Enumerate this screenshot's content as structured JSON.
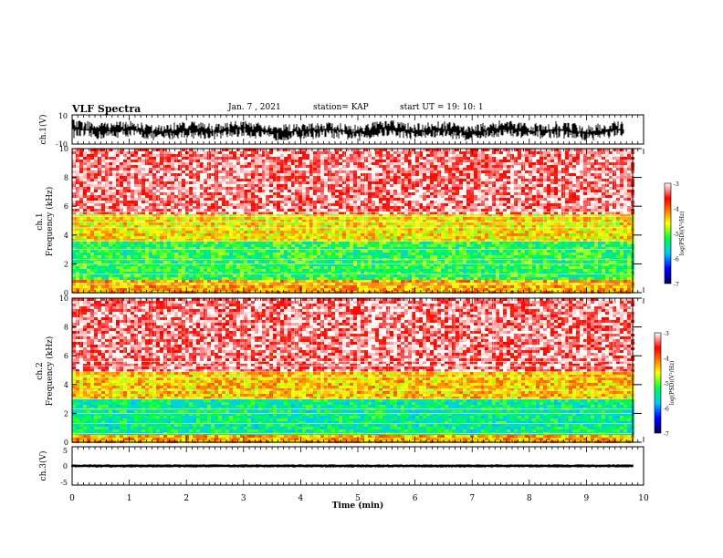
{
  "header": {
    "title": "VLF Spectra",
    "date": "Jan. 7 , 2021",
    "station": "station= KAP",
    "start": "start UT = 19: 10: 1"
  },
  "chart_data": [
    {
      "type": "line",
      "ylabel": "ch.1(V)",
      "ylim": [
        -10,
        10
      ],
      "yticklabels": [
        "10",
        "-10"
      ],
      "xlim": [
        0,
        10
      ],
      "description_level": "noisy waveform with slow oscillation",
      "envelope": {
        "x": [
          0,
          0.5,
          1,
          1.5,
          2,
          2.5,
          3,
          3.5,
          4,
          4.5,
          5,
          5.5,
          6,
          6.5,
          7,
          7.5,
          8,
          8.5,
          9,
          9.5,
          9.8
        ],
        "lower": [
          -6,
          -7,
          -5,
          -8,
          -6,
          -7,
          -5,
          -8,
          -7,
          -6,
          -8,
          -5,
          -7,
          -6,
          -8,
          -5,
          -7,
          -6,
          -8,
          -6,
          -7
        ],
        "upper": [
          7,
          5,
          6,
          3,
          6,
          4,
          7,
          3,
          5,
          6,
          3,
          7,
          4,
          6,
          3,
          7,
          4,
          6,
          3,
          6,
          5
        ]
      }
    },
    {
      "type": "heatmap",
      "ylabel": "ch.1",
      "ylabel2": "Frequency (kHz)",
      "ylim": [
        0,
        10
      ],
      "yticks": [
        0,
        2,
        4,
        6,
        8,
        10
      ],
      "xlim": [
        0,
        10
      ],
      "colorbar": {
        "label": "log(PSD)(V²/Hz)",
        "range": [
          -7,
          -3
        ],
        "ticks": [
          "-3",
          "-4",
          "-5",
          "-6",
          "-7"
        ]
      },
      "bands": [
        {
          "from": 0,
          "to": 0.8,
          "level": -4.3
        },
        {
          "from": 0.8,
          "to": 3.6,
          "level": -5.2
        },
        {
          "from": 3.6,
          "to": 5.4,
          "level": -4.5
        },
        {
          "from": 5.4,
          "to": 10,
          "level": -3.3
        }
      ]
    },
    {
      "type": "heatmap",
      "ylabel": "ch.2",
      "ylabel2": "Frequency (kHz)",
      "ylim": [
        0,
        10
      ],
      "yticks": [
        0,
        2,
        4,
        6,
        8,
        10
      ],
      "xlim": [
        0,
        10
      ],
      "colorbar": {
        "label": "log(PSD)(V²/Hz)",
        "range": [
          -7,
          -3
        ],
        "ticks": [
          "-3",
          "-4",
          "-5",
          "-6",
          "-7"
        ]
      },
      "bands": [
        {
          "from": 0,
          "to": 0.6,
          "level": -4.3
        },
        {
          "from": 0.6,
          "to": 3.0,
          "level": -5.4
        },
        {
          "from": 3.0,
          "to": 4.8,
          "level": -4.4
        },
        {
          "from": 4.8,
          "to": 10,
          "level": -3.3
        }
      ]
    },
    {
      "type": "line",
      "ylabel": "ch.3(V)",
      "ylim": [
        -5,
        5
      ],
      "yticklabels": [
        "5",
        "0",
        "-5"
      ],
      "xlim": [
        0,
        10
      ],
      "xlabel": "Time (min)",
      "xticks": [
        0,
        1,
        2,
        3,
        4,
        5,
        6,
        7,
        8,
        9,
        10
      ],
      "level": 0,
      "envelope": {
        "lower": -0.4,
        "upper": 0.4
      }
    }
  ]
}
